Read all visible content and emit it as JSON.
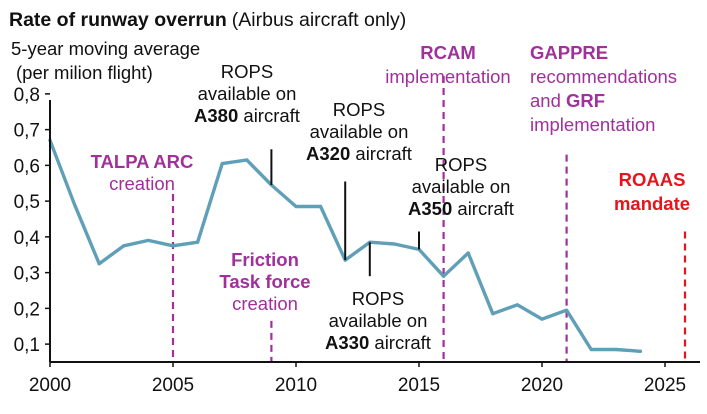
{
  "chart_data": {
    "type": "line",
    "title_bold": "Rate of runway overrun",
    "title_rest": "(Airbus aircraft only)",
    "subtitle_line1": "5-year moving average",
    "subtitle_line2": "(per milion flight)",
    "xlim": [
      2000,
      2026
    ],
    "ylim": [
      0.05,
      0.85
    ],
    "x_ticks": [
      {
        "value": 2000,
        "label": "2000"
      },
      {
        "value": 2005,
        "label": "2005"
      },
      {
        "value": 2010,
        "label": "2010"
      },
      {
        "value": 2015,
        "label": "2015"
      },
      {
        "value": 2020,
        "label": "2020"
      },
      {
        "value": 2025,
        "label": "2025"
      }
    ],
    "y_ticks": [
      {
        "value": 0.1,
        "label": "0,1"
      },
      {
        "value": 0.2,
        "label": "0,2"
      },
      {
        "value": 0.3,
        "label": "0,3"
      },
      {
        "value": 0.4,
        "label": "0,4"
      },
      {
        "value": 0.5,
        "label": "0,5"
      },
      {
        "value": 0.6,
        "label": "0,6"
      },
      {
        "value": 0.7,
        "label": "0,7"
      },
      {
        "value": 0.8,
        "label": "0,8"
      }
    ],
    "series": [
      {
        "color": "#5f9fb7",
        "points": [
          [
            2000,
            0.67
          ],
          [
            2001,
            0.49
          ],
          [
            2002,
            0.325
          ],
          [
            2003,
            0.375
          ],
          [
            2004,
            0.39
          ],
          [
            2005,
            0.375
          ],
          [
            2006,
            0.385
          ],
          [
            2007,
            0.605
          ],
          [
            2008,
            0.615
          ],
          [
            2009,
            0.545
          ],
          [
            2010,
            0.485
          ],
          [
            2011,
            0.485
          ],
          [
            2012,
            0.335
          ],
          [
            2013,
            0.385
          ],
          [
            2014,
            0.38
          ],
          [
            2015,
            0.365
          ],
          [
            2016,
            0.29
          ],
          [
            2017,
            0.355
          ],
          [
            2018,
            0.185
          ],
          [
            2019,
            0.21
          ],
          [
            2020,
            0.17
          ],
          [
            2021,
            0.195
          ],
          [
            2022,
            0.085
          ],
          [
            2023,
            0.085
          ],
          [
            2024,
            0.08
          ]
        ]
      }
    ],
    "milestones": [
      {
        "id": "talpa",
        "x": 2005,
        "y_from": 0.05,
        "y_to": 0.52,
        "color": "#a0309a",
        "lines": [
          [
            {
              "t": "TALPA ARC",
              "b": true
            }
          ],
          [
            {
              "t": "creation",
              "b": false
            }
          ]
        ]
      },
      {
        "id": "friction",
        "x": 2009,
        "y_from": 0.05,
        "y_to": 0.165,
        "color": "#a0309a",
        "lines": [
          [
            {
              "t": "Friction",
              "b": true
            }
          ],
          [
            {
              "t": "Task force",
              "b": true
            }
          ],
          [
            {
              "t": "creation",
              "b": false
            }
          ]
        ]
      },
      {
        "id": "rcam",
        "x": 2016,
        "y_from": 0.05,
        "y_to": 0.85,
        "color": "#a0309a",
        "lines": [
          [
            {
              "t": "RCAM",
              "b": true
            }
          ],
          [
            {
              "t": "implementation",
              "b": false
            }
          ]
        ]
      },
      {
        "id": "gappre",
        "x": 2021,
        "y_from": 0.05,
        "y_to": 0.63,
        "color": "#a0309a",
        "lines": [
          [
            {
              "t": "GAPPRE",
              "b": true
            }
          ],
          [
            {
              "t": "recommendations",
              "b": false
            }
          ],
          [
            {
              "t": "and ",
              "b": false
            },
            {
              "t": "GRF",
              "b": true
            }
          ],
          [
            {
              "t": "implementation",
              "b": false
            }
          ]
        ]
      },
      {
        "id": "roaas",
        "x": 2026,
        "y_from": 0.05,
        "y_to": 0.415,
        "color": "#e8141b",
        "lines": [
          [
            {
              "t": "ROAAS",
              "b": true
            }
          ],
          [
            {
              "t": "mandate",
              "b": true
            }
          ]
        ]
      }
    ],
    "annotations": [
      {
        "id": "rops-a380",
        "x": 2009,
        "lines": [
          [
            {
              "t": "ROPS",
              "b": false
            }
          ],
          [
            {
              "t": "available on",
              "b": false
            }
          ],
          [
            {
              "t": "A380",
              "b": true
            },
            {
              "t": " aircraft",
              "b": false
            }
          ]
        ]
      },
      {
        "id": "rops-a320",
        "x": 2012,
        "lines": [
          [
            {
              "t": "ROPS",
              "b": false
            }
          ],
          [
            {
              "t": "available on",
              "b": false
            }
          ],
          [
            {
              "t": "A320",
              "b": true
            },
            {
              "t": " aircraft",
              "b": false
            }
          ]
        ]
      },
      {
        "id": "rops-a350",
        "x": 2015,
        "lines": [
          [
            {
              "t": "ROPS",
              "b": false
            }
          ],
          [
            {
              "t": "available on",
              "b": false
            }
          ],
          [
            {
              "t": "A350",
              "b": true
            },
            {
              "t": " aircraft",
              "b": false
            }
          ]
        ]
      },
      {
        "id": "rops-a330",
        "x": 2013,
        "lines": [
          [
            {
              "t": "ROPS",
              "b": false
            }
          ],
          [
            {
              "t": "available on",
              "b": false
            }
          ],
          [
            {
              "t": "A330",
              "b": true
            },
            {
              "t": " aircraft",
              "b": false
            }
          ]
        ]
      }
    ]
  }
}
